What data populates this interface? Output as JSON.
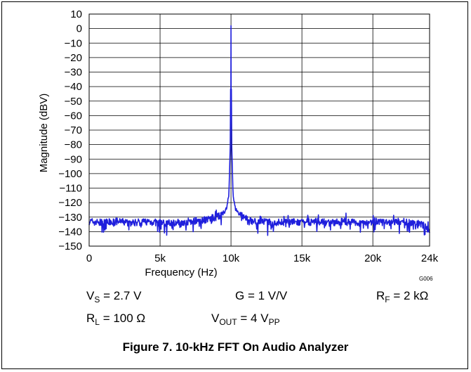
{
  "chart_data": {
    "type": "line",
    "xlabel": "Frequency (Hz)",
    "ylabel": "Magnitude (dBV)",
    "xlim": [
      0,
      24000
    ],
    "ylim": [
      -150,
      10
    ],
    "x_ticks": [
      0,
      5000,
      10000,
      15000,
      20000,
      24000
    ],
    "x_tick_labels": [
      "0",
      "5k",
      "10k",
      "15k",
      "20k",
      "24k"
    ],
    "y_ticks": [
      10,
      0,
      -10,
      -20,
      -30,
      -40,
      -50,
      -60,
      -70,
      -80,
      -90,
      -100,
      -110,
      -120,
      -130,
      -140,
      -150
    ],
    "y_tick_labels": [
      "10",
      "0",
      "−10",
      "−20",
      "−30",
      "−40",
      "−50",
      "−60",
      "−70",
      "−80",
      "−90",
      "−100",
      "−110",
      "−120",
      "−130",
      "−140",
      "−150"
    ],
    "grid": true,
    "series": [
      {
        "color": "#1f1fdc",
        "x": [
          0,
          1000,
          2000,
          3000,
          4000,
          5000,
          6000,
          7000,
          8000,
          8500,
          9000,
          9400,
          9700,
          9850,
          9950,
          10000,
          10050,
          10150,
          10300,
          10600,
          11000,
          11500,
          12000,
          13000,
          14000,
          15000,
          16000,
          17000,
          18000,
          19000,
          20000,
          21000,
          22000,
          23000,
          23700,
          24000
        ],
        "y": [
          -133,
          -134,
          -133,
          -134,
          -133,
          -134,
          -134,
          -133,
          -132,
          -131,
          -130,
          -128,
          -124,
          -115,
          -80,
          2,
          -80,
          -115,
          -124,
          -128,
          -131,
          -133,
          -133,
          -134,
          -133,
          -134,
          -133,
          -134,
          -133,
          -134,
          -133,
          -134,
          -133,
          -134,
          -136,
          -141
        ]
      }
    ]
  },
  "code": "G006",
  "conditions": {
    "vs": {
      "main": "V",
      "sub": "S",
      "rest": " = 2.7 V"
    },
    "g": {
      "text": "G = 1 V/V"
    },
    "rf": {
      "main": "R",
      "sub": "F",
      "rest": " = 2 kΩ"
    },
    "rl": {
      "main": "R",
      "sub": "L",
      "rest": " = 100 Ω"
    },
    "vout": {
      "main": "V",
      "sub": "OUT",
      "rest": " = 4 V",
      "sub2": "PP"
    }
  },
  "caption": "Figure 7. 10-kHz FFT On Audio Analyzer"
}
